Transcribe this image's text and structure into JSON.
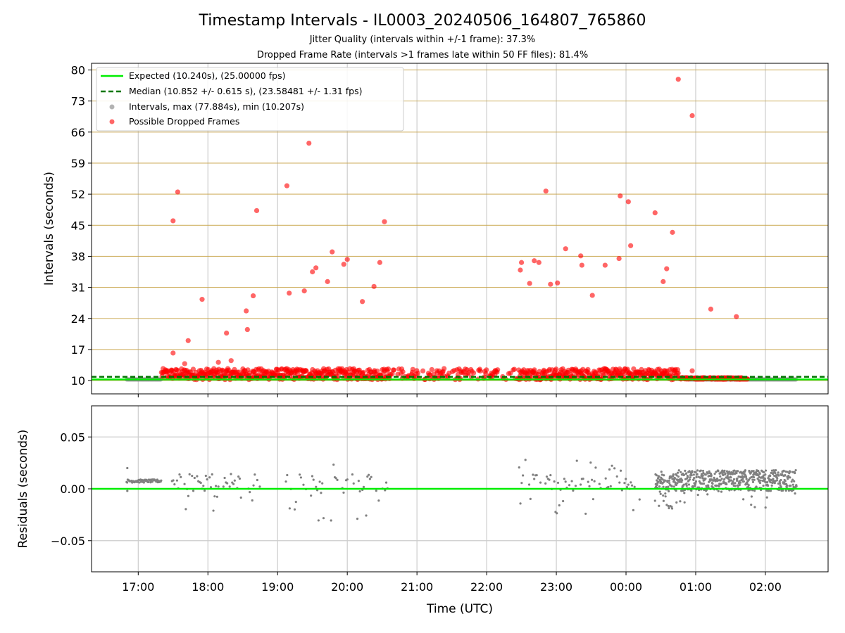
{
  "chart_data": [
    {
      "type": "scatter",
      "title": "Timestamp Intervals - IL0003_20240506_164807_765860",
      "subtitles": [
        "Jitter Quality (intervals within +/-1 frame): 37.3%",
        "Dropped Frame Rate (intervals >1 frames late within 50 FF files): 81.4%"
      ],
      "ylabel": "Intervals (seconds)",
      "xlim": [
        16.33,
        2.9
      ],
      "ylim": [
        7,
        81.5
      ],
      "yticks": [
        "10",
        "17",
        "24",
        "31",
        "38",
        "45",
        "52",
        "59",
        "66",
        "73",
        "80"
      ],
      "xticks": [
        "17:00",
        "18:00",
        "19:00",
        "20:00",
        "21:00",
        "22:00",
        "23:00",
        "00:00",
        "01:00",
        "02:00"
      ],
      "colors": {
        "expected": "#00ee00",
        "median": "#007700",
        "intervals": "#808080",
        "dropped": "#ff0000",
        "grid_major": "#c8a44a"
      },
      "lines": [
        {
          "name": "Expected (10.240s), (25.00000 fps)",
          "y": 10.24,
          "style": "solid"
        },
        {
          "name": "Median (10.852 +/- 0.615 s), (23.58481 +/- 1.31 fps)",
          "y": 10.852,
          "style": "dashed"
        }
      ],
      "legend": [
        {
          "label": "Expected (10.240s), (25.00000 fps)",
          "marker": "line"
        },
        {
          "label": "Median (10.852 +/- 0.615 s), (23.58481 +/- 1.31 fps)",
          "marker": "dashed"
        },
        {
          "label": "Intervals, max (77.884s), min (10.207s)",
          "marker": "gray-dot"
        },
        {
          "label": "Possible Dropped Frames",
          "marker": "red-dot"
        }
      ],
      "legend_position": "top-left",
      "interval_range": {
        "max": 77.884,
        "min": 10.207
      },
      "dropped_frames_high": [
        {
          "x": "17:30",
          "y": 46.0
        },
        {
          "x": "17:34",
          "y": 52.5
        },
        {
          "x": "17:30",
          "y": 16.2
        },
        {
          "x": "17:43",
          "y": 19.0
        },
        {
          "x": "17:55",
          "y": 28.3
        },
        {
          "x": "17:40",
          "y": 13.8
        },
        {
          "x": "18:09",
          "y": 14.1
        },
        {
          "x": "18:16",
          "y": 20.7
        },
        {
          "x": "18:20",
          "y": 14.5
        },
        {
          "x": "18:33",
          "y": 25.7
        },
        {
          "x": "18:34",
          "y": 21.5
        },
        {
          "x": "18:39",
          "y": 29.1
        },
        {
          "x": "18:42",
          "y": 48.3
        },
        {
          "x": "19:08",
          "y": 53.9
        },
        {
          "x": "19:10",
          "y": 29.7
        },
        {
          "x": "19:23",
          "y": 30.2
        },
        {
          "x": "19:27",
          "y": 63.5
        },
        {
          "x": "19:30",
          "y": 34.5
        },
        {
          "x": "19:33",
          "y": 35.4
        },
        {
          "x": "19:43",
          "y": 32.3
        },
        {
          "x": "19:47",
          "y": 39.0
        },
        {
          "x": "19:57",
          "y": 36.2
        },
        {
          "x": "20:00",
          "y": 37.3
        },
        {
          "x": "20:13",
          "y": 27.8
        },
        {
          "x": "20:23",
          "y": 31.2
        },
        {
          "x": "20:28",
          "y": 36.6
        },
        {
          "x": "20:32",
          "y": 45.8
        },
        {
          "x": "22:29",
          "y": 34.9
        },
        {
          "x": "22:30",
          "y": 36.6
        },
        {
          "x": "22:37",
          "y": 31.9
        },
        {
          "x": "22:41",
          "y": 37.0
        },
        {
          "x": "22:45",
          "y": 36.6
        },
        {
          "x": "22:51",
          "y": 52.7
        },
        {
          "x": "22:55",
          "y": 31.7
        },
        {
          "x": "23:01",
          "y": 32.0
        },
        {
          "x": "23:08",
          "y": 39.7
        },
        {
          "x": "23:21",
          "y": 38.1
        },
        {
          "x": "23:22",
          "y": 36.0
        },
        {
          "x": "23:31",
          "y": 29.2
        },
        {
          "x": "23:42",
          "y": 36.0
        },
        {
          "x": "23:54",
          "y": 37.5
        },
        {
          "x": "23:55",
          "y": 51.6
        },
        {
          "x": "00:02",
          "y": 50.3
        },
        {
          "x": "00:04",
          "y": 40.4
        },
        {
          "x": "00:25",
          "y": 47.8
        },
        {
          "x": "00:32",
          "y": 32.3
        },
        {
          "x": "00:35",
          "y": 35.2
        },
        {
          "x": "00:40",
          "y": 43.4
        },
        {
          "x": "00:45",
          "y": 77.9
        },
        {
          "x": "00:57",
          "y": 69.7
        },
        {
          "x": "01:13",
          "y": 26.1
        },
        {
          "x": "01:35",
          "y": 24.4
        },
        {
          "x": "00:57",
          "y": 12.2
        }
      ],
      "intervals_gray_range": [
        {
          "from": "16:50",
          "to": "17:20",
          "y": 10.24
        },
        {
          "from": "00:55",
          "to": "02:27",
          "y": 10.24
        }
      ],
      "dropped_frames_dense_band": {
        "from": "17:20",
        "to": "01:40",
        "y_min": 10.2,
        "y_max": 12.7
      }
    },
    {
      "type": "scatter",
      "xlabel": "Time (UTC)",
      "ylabel": "Residuals (seconds)",
      "ylim": [
        -0.08,
        0.08
      ],
      "yticks": [
        "0.05",
        "0.00",
        "−0.05"
      ],
      "xticks": [
        "17:00",
        "18:00",
        "19:00",
        "20:00",
        "21:00",
        "22:00",
        "23:00",
        "00:00",
        "01:00",
        "02:00"
      ],
      "zero_line": 0.0,
      "segments": [
        {
          "from": "16:50",
          "to": "17:20",
          "y_min": 0.006,
          "y_max": 0.009,
          "outliers": [
            0.02,
            -0.002
          ]
        },
        {
          "from": "17:28",
          "to": "18:45",
          "y_min": -0.022,
          "y_max": 0.018
        },
        {
          "from": "19:05",
          "to": "20:35",
          "y_min": -0.033,
          "y_max": 0.03
        },
        {
          "from": "22:28",
          "to": "00:12",
          "y_min": -0.025,
          "y_max": 0.03
        },
        {
          "from": "00:25",
          "to": "02:27",
          "y_min": -0.02,
          "y_max": 0.018
        }
      ]
    }
  ]
}
